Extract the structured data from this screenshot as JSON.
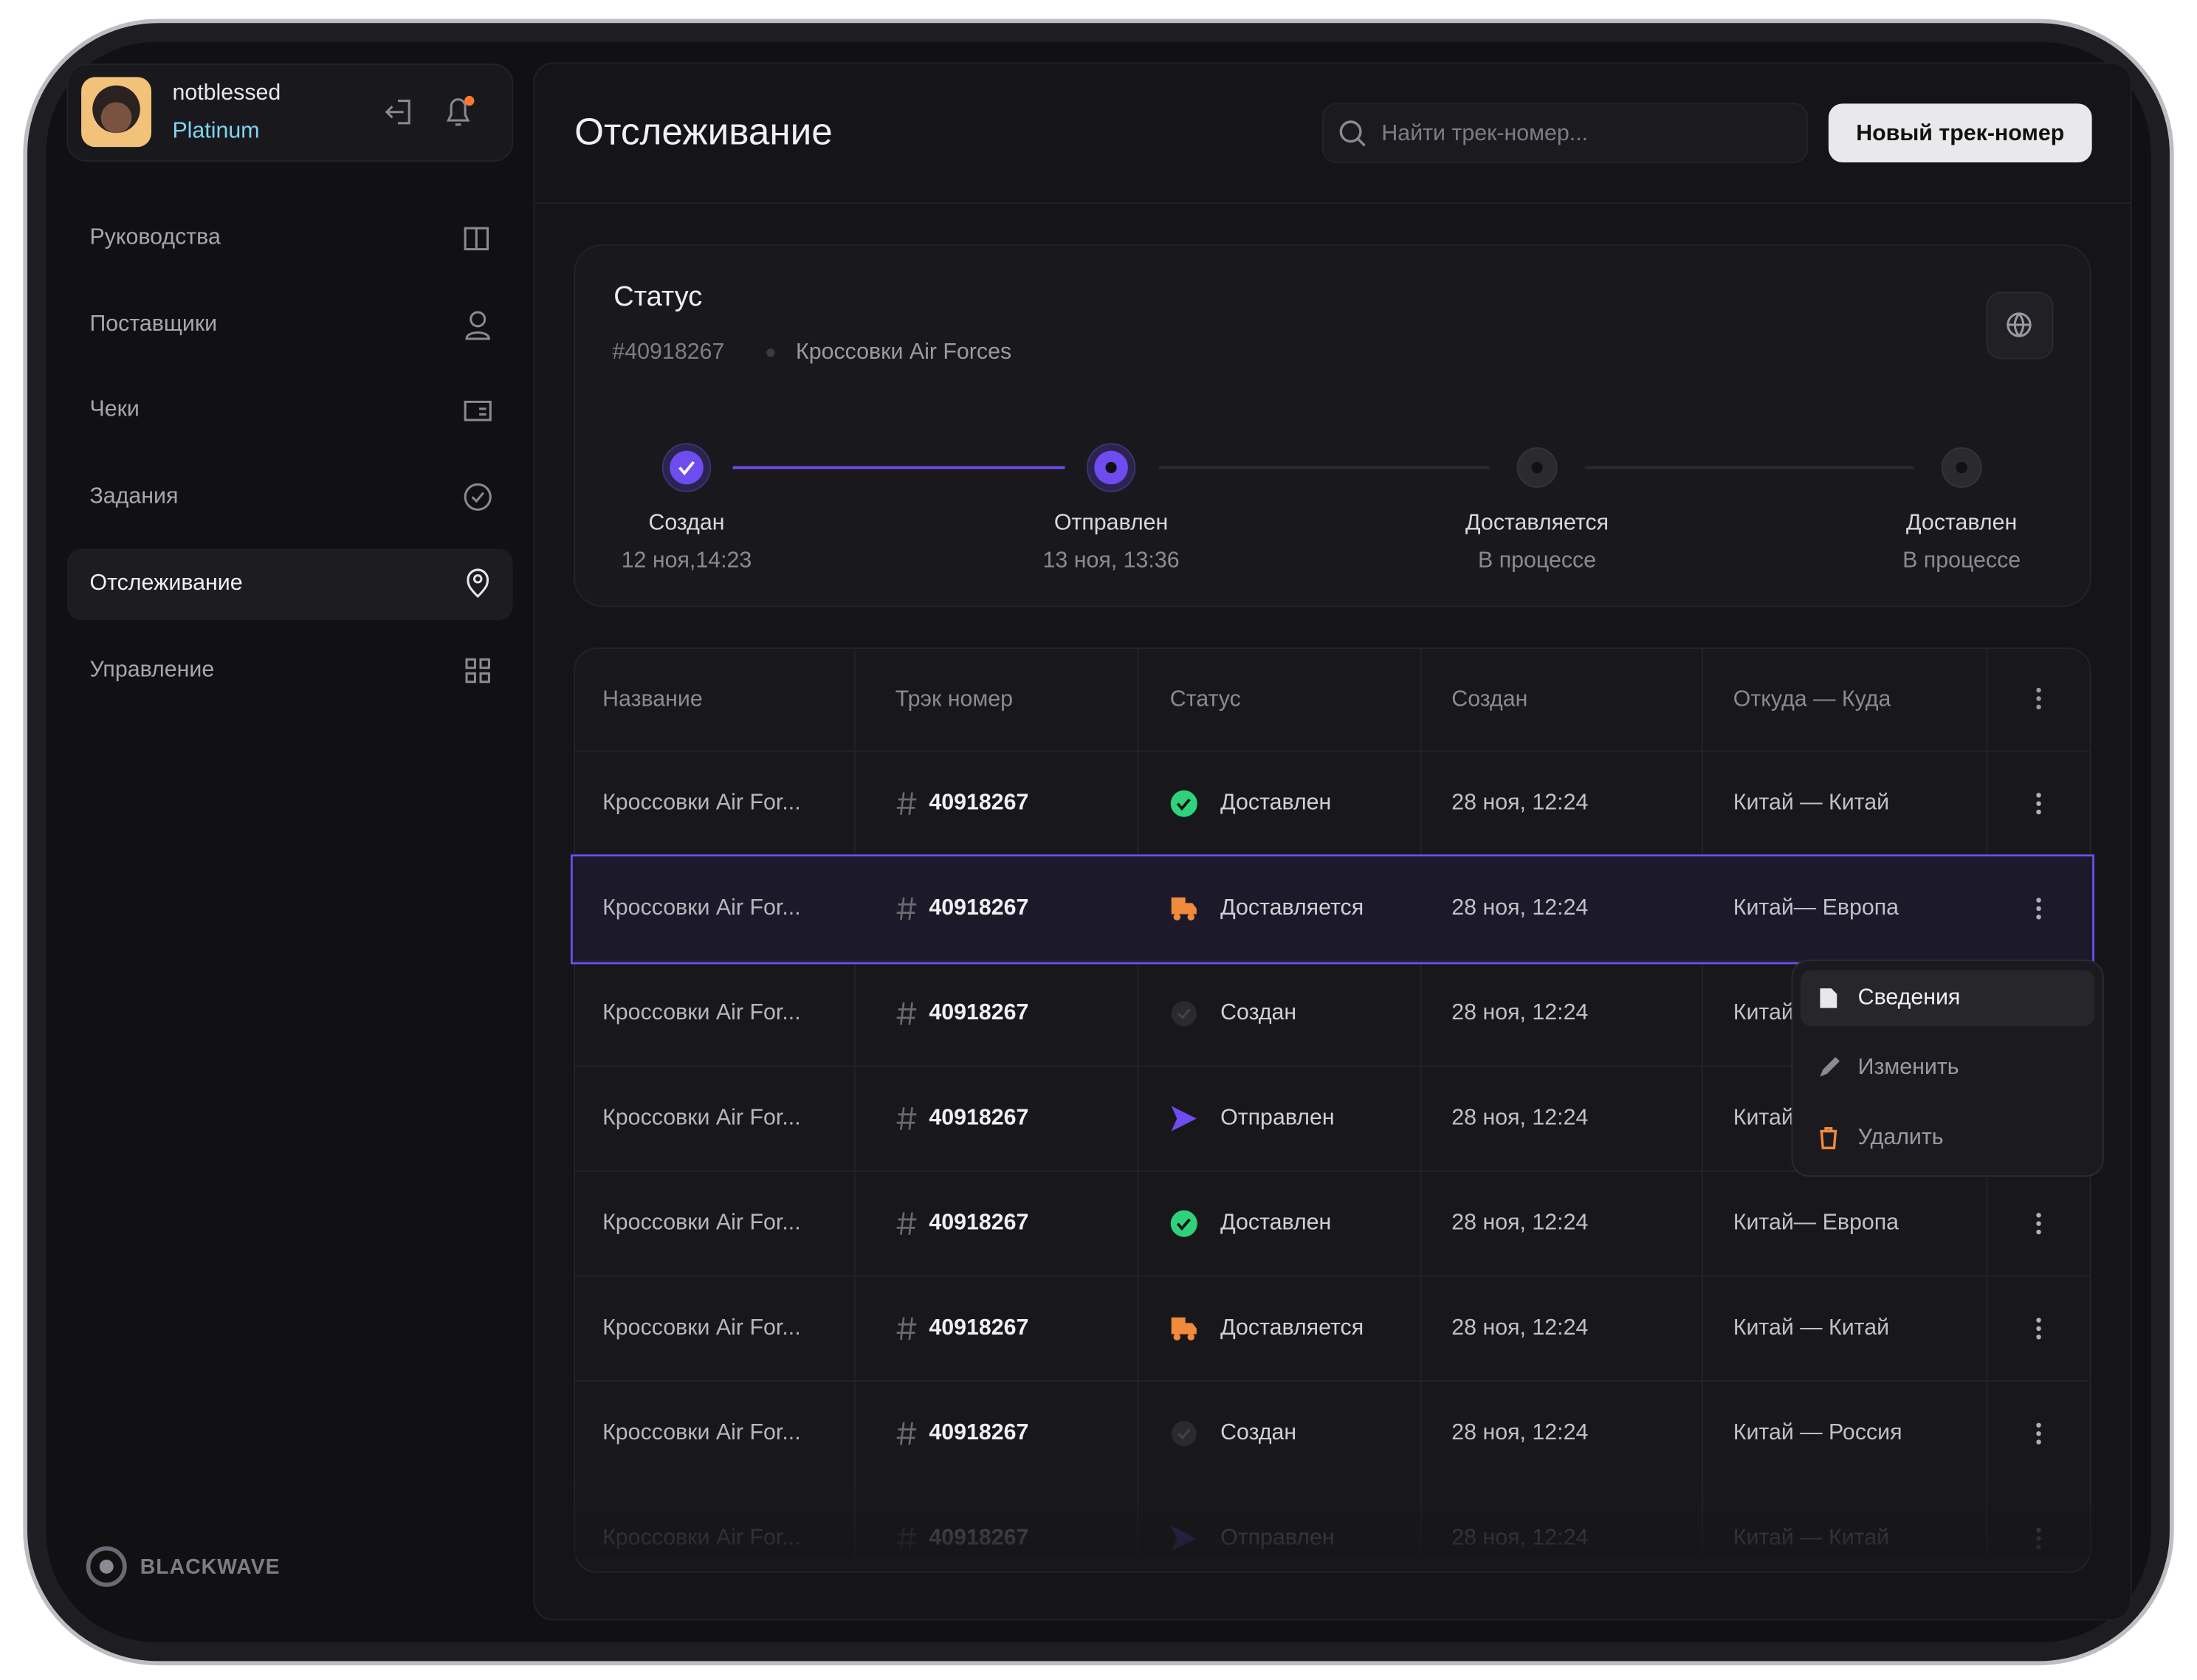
{
  "user": {
    "name": "notblessed",
    "plan": "Platinum"
  },
  "nav": [
    "Руководства",
    "Поставщики",
    "Чеки",
    "Задания",
    "Отслеживание",
    "Управление"
  ],
  "brand": "BLACKWAVE",
  "header": {
    "title": "Отслеживание",
    "search_placeholder": "Найти трек-номер...",
    "button": "Новый трек-номер"
  },
  "status": {
    "title": "Статус",
    "id": "#40918267",
    "product": "Кроссовки Air Forces",
    "steps": [
      {
        "label": "Создан",
        "date": "12 ноя,14:23"
      },
      {
        "label": "Отправлен",
        "date": "13 ноя, 13:36"
      },
      {
        "label": "Доставляется",
        "date": "В процессе"
      },
      {
        "label": "Доставлен",
        "date": "В процессе"
      }
    ]
  },
  "table": {
    "columns": [
      "Название",
      "Трэк номер",
      "Статус",
      "Создан",
      "Откуда — Куда"
    ],
    "rows": [
      [
        "Кроссовки Air For...",
        "40918267",
        "Доставлен",
        "28 ноя, 12:24",
        "Китай — Китай"
      ],
      [
        "Кроссовки Air For...",
        "40918267",
        "Доставляется",
        "28 ноя, 12:24",
        "Китай— Европа"
      ],
      [
        "Кроссовки Air For...",
        "40918267",
        "Создан",
        "28 ноя, 12:24",
        "Китай — Китай"
      ],
      [
        "Кроссовки Air For...",
        "40918267",
        "Отправлен",
        "28 ноя, 12:24",
        "Китай — Китай"
      ],
      [
        "Кроссовки Air For...",
        "40918267",
        "Доставлен",
        "28 ноя, 12:24",
        "Китай— Европа"
      ],
      [
        "Кроссовки Air For...",
        "40918267",
        "Доставляется",
        "28 ноя, 12:24",
        "Китай — Китай"
      ],
      [
        "Кроссовки Air For...",
        "40918267",
        "Создан",
        "28 ноя, 12:24",
        "Китай — Россия"
      ],
      [
        "Кроссовки Air For...",
        "40918267",
        "Отправлен",
        "28 ноя, 12:24",
        "Китай — Китай"
      ]
    ]
  },
  "menu": [
    "Сведения",
    "Изменить",
    "Удалить"
  ]
}
